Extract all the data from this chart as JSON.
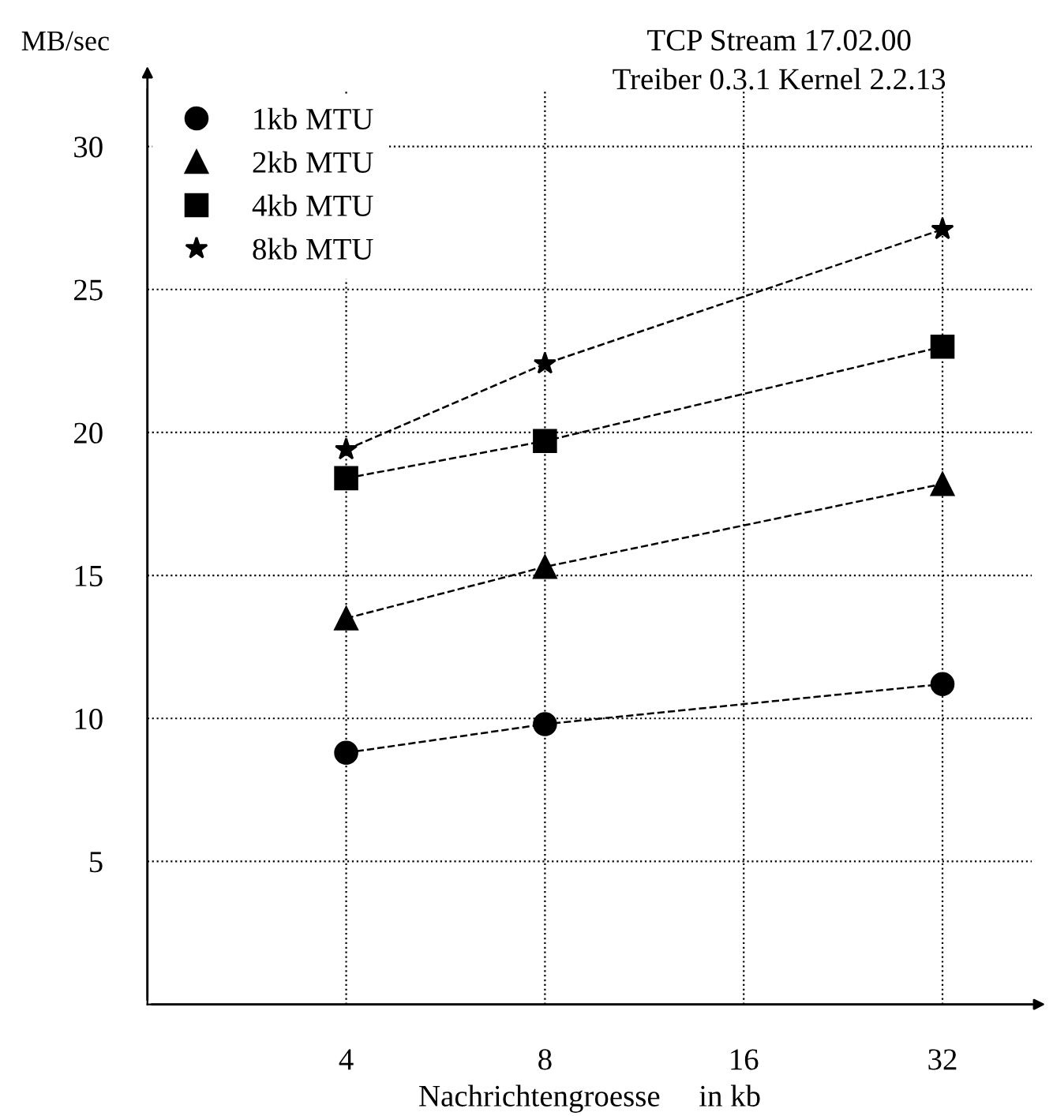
{
  "chart_data": {
    "type": "line",
    "title": "TCP Stream 17.02.00",
    "subtitle": "Treiber 0.3.1 Kernel 2.2.13",
    "ylabel": "MB/sec",
    "xlabel": "Nachrichtengroesse     in kb",
    "categories": [
      "4",
      "8",
      "16",
      "32"
    ],
    "series": [
      {
        "name": "1kb MTU",
        "color": "#000000",
        "marker": "circle",
        "values": [
          8.8,
          9.8,
          null,
          11.2
        ]
      },
      {
        "name": "2kb MTU",
        "color": "#000000",
        "marker": "triangle",
        "values": [
          13.5,
          15.3,
          null,
          18.2
        ]
      },
      {
        "name": "4kb MTU",
        "color": "#000000",
        "marker": "square",
        "values": [
          18.4,
          19.7,
          null,
          23.0
        ]
      },
      {
        "name": "8kb MTU",
        "color": "#000000",
        "marker": "star",
        "values": [
          19.4,
          22.4,
          null,
          27.1
        ]
      }
    ],
    "ylim": [
      0,
      32
    ],
    "yticks": [
      5,
      10,
      15,
      20,
      25,
      30
    ],
    "grid": true,
    "legend": "top left",
    "line_style": "dashed"
  }
}
